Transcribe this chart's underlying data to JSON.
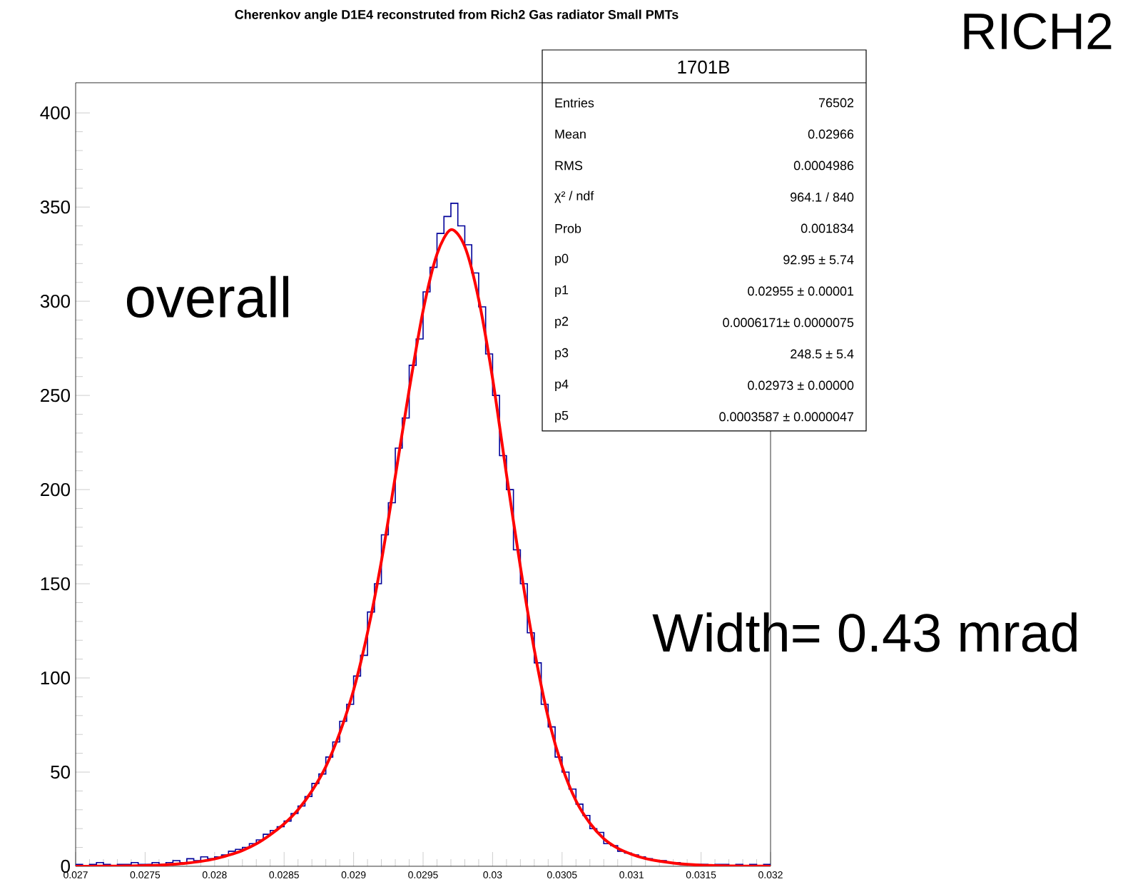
{
  "chart_data": {
    "type": "histogram",
    "title": "Cherenkov angle D1E4 reconstruted from Rich2 Gas radiator Small PMTs",
    "xlim": [
      0.027,
      0.032
    ],
    "ylim": [
      0,
      416
    ],
    "xticks": [
      0.027,
      0.0275,
      0.028,
      0.0285,
      0.029,
      0.0295,
      0.03,
      0.0305,
      0.031,
      0.0315,
      0.032
    ],
    "yticks": [
      0,
      50,
      100,
      150,
      200,
      250,
      300,
      350,
      400
    ],
    "grid": false,
    "series": [
      {
        "color": "#000099",
        "bins": [
          0.027,
          0.02705,
          0.0271,
          0.02715,
          0.0272,
          0.02725,
          0.0273,
          0.02735,
          0.0274,
          0.02745,
          0.0275,
          0.02755,
          0.0276,
          0.02765,
          0.0277,
          0.02775,
          0.0278,
          0.02785,
          0.0279,
          0.02795,
          0.028,
          0.02805,
          0.0281,
          0.02815,
          0.0282,
          0.02825,
          0.0283,
          0.02835,
          0.0284,
          0.02845,
          0.0285,
          0.02855,
          0.0286,
          0.02865,
          0.0287,
          0.02875,
          0.0288,
          0.02885,
          0.0289,
          0.02895,
          0.029,
          0.02905,
          0.0291,
          0.02915,
          0.0292,
          0.02925,
          0.0293,
          0.02935,
          0.0294,
          0.02945,
          0.0295,
          0.02955,
          0.0296,
          0.02965,
          0.0297,
          0.02975,
          0.0298,
          0.02985,
          0.0299,
          0.02995,
          0.03,
          0.03005,
          0.0301,
          0.03015,
          0.0302,
          0.03025,
          0.0303,
          0.03035,
          0.0304,
          0.03045,
          0.0305,
          0.03055,
          0.0306,
          0.03065,
          0.0307,
          0.03075,
          0.0308,
          0.03085,
          0.0309,
          0.03095,
          0.031,
          0.03105,
          0.0311,
          0.03115,
          0.0312,
          0.03125,
          0.0313,
          0.03135,
          0.0314,
          0.03145,
          0.0315,
          0.03155,
          0.0316,
          0.03165,
          0.0317,
          0.03175,
          0.0318,
          0.03185,
          0.0319,
          0.03195,
          0.032
        ],
        "values": [
          1,
          0,
          1,
          2,
          1,
          0,
          1,
          1,
          2,
          1,
          1,
          2,
          1,
          2,
          3,
          2,
          4,
          3,
          5,
          4,
          5,
          6,
          8,
          9,
          10,
          12,
          14,
          17,
          19,
          21,
          24,
          28,
          32,
          37,
          44,
          49,
          58,
          66,
          77,
          86,
          101,
          112,
          135,
          150,
          176,
          193,
          222,
          238,
          266,
          280,
          305,
          318,
          336,
          345,
          352,
          340,
          330,
          315,
          297,
          272,
          250,
          218,
          200,
          168,
          150,
          124,
          108,
          86,
          74,
          58,
          50,
          41,
          33,
          27,
          20,
          18,
          12,
          11,
          8,
          7,
          6,
          5,
          4,
          3,
          3,
          2,
          2,
          1,
          1,
          1,
          1,
          0,
          1,
          1,
          0,
          1,
          0,
          1,
          0,
          1
        ]
      },
      {
        "type": "line",
        "color": "#ff0000",
        "x": [
          0.027,
          0.0271,
          0.0272,
          0.0273,
          0.0274,
          0.0275,
          0.0276,
          0.0277,
          0.0278,
          0.0279,
          0.028,
          0.0281,
          0.0282,
          0.0283,
          0.0284,
          0.0285,
          0.0286,
          0.0287,
          0.0288,
          0.0289,
          0.029,
          0.0291,
          0.0292,
          0.0293,
          0.0294,
          0.0295,
          0.0296,
          0.0297,
          0.0298,
          0.0299,
          0.03,
          0.0301,
          0.0302,
          0.0303,
          0.0304,
          0.0305,
          0.0306,
          0.0307,
          0.0308,
          0.0309,
          0.031,
          0.0311,
          0.0312,
          0.0313,
          0.0314,
          0.0315,
          0.0316,
          0.0317,
          0.0318,
          0.0319,
          0.032
        ],
        "values": [
          0,
          0,
          0.1,
          0.1,
          0.2,
          0.4,
          0.6,
          1,
          1.7,
          2.6,
          3.9,
          5.9,
          8.4,
          11.9,
          16.7,
          22.5,
          30,
          40,
          52.9,
          70.8,
          93.6,
          124,
          162,
          207,
          253,
          295,
          325,
          338,
          329,
          301,
          259,
          208,
          159,
          115,
          79,
          53,
          34.8,
          22.9,
          14.7,
          9.6,
          6.4,
          4.1,
          2.7,
          1.7,
          1,
          0.6,
          0.4,
          0.2,
          0.1,
          0.1,
          0
        ]
      }
    ],
    "annotations": [
      "1701B",
      "Entries",
      "76502",
      "Mean",
      "0.02966",
      "RMS",
      "0.0004986",
      "χ² / ndf",
      "964.1 / 840",
      "Prob",
      "0.001834",
      "p0",
      "92.95 ± 5.74",
      "p1",
      "0.02955 ± 0.00001",
      "p2",
      "0.0006171± 0.0000075",
      "p3",
      "248.5 ± 5.4",
      "p4",
      "0.02973 ± 0.00000",
      "p5",
      "0.0003587 ± 0.0000047",
      "overall",
      "Width= 0.43 mrad",
      "RICH2"
    ]
  }
}
